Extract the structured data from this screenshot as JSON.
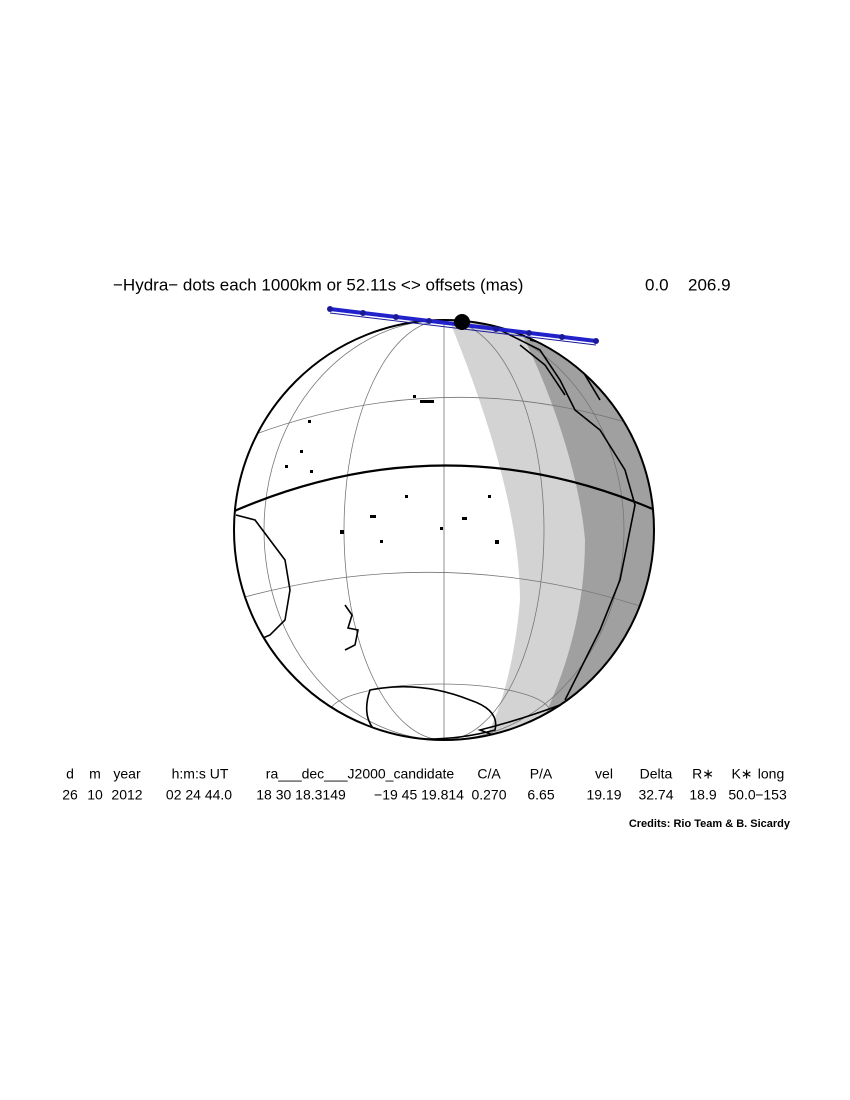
{
  "header": {
    "title": "−Hydra− dots each 1000km or 52.11s <> offsets (mas)",
    "offsets": [
      "0.0",
      "206.9"
    ]
  },
  "table": {
    "columns": [
      "d",
      "m",
      "year",
      "h:m:s UT",
      "ra___dec___J2000_candidate",
      "C/A",
      "P/A",
      "vel",
      "Delta",
      "R∗",
      "K∗",
      "long"
    ],
    "values": [
      "26",
      "10",
      "2012",
      "02 24 44.0",
      "18 30 18.3149",
      "−19 45 19.814",
      "0.270",
      "6.65",
      "19.19",
      "32.74",
      "18.9",
      "50.0",
      "−153"
    ]
  },
  "credits": "Credits: Rio Team & B. Sicardy"
}
